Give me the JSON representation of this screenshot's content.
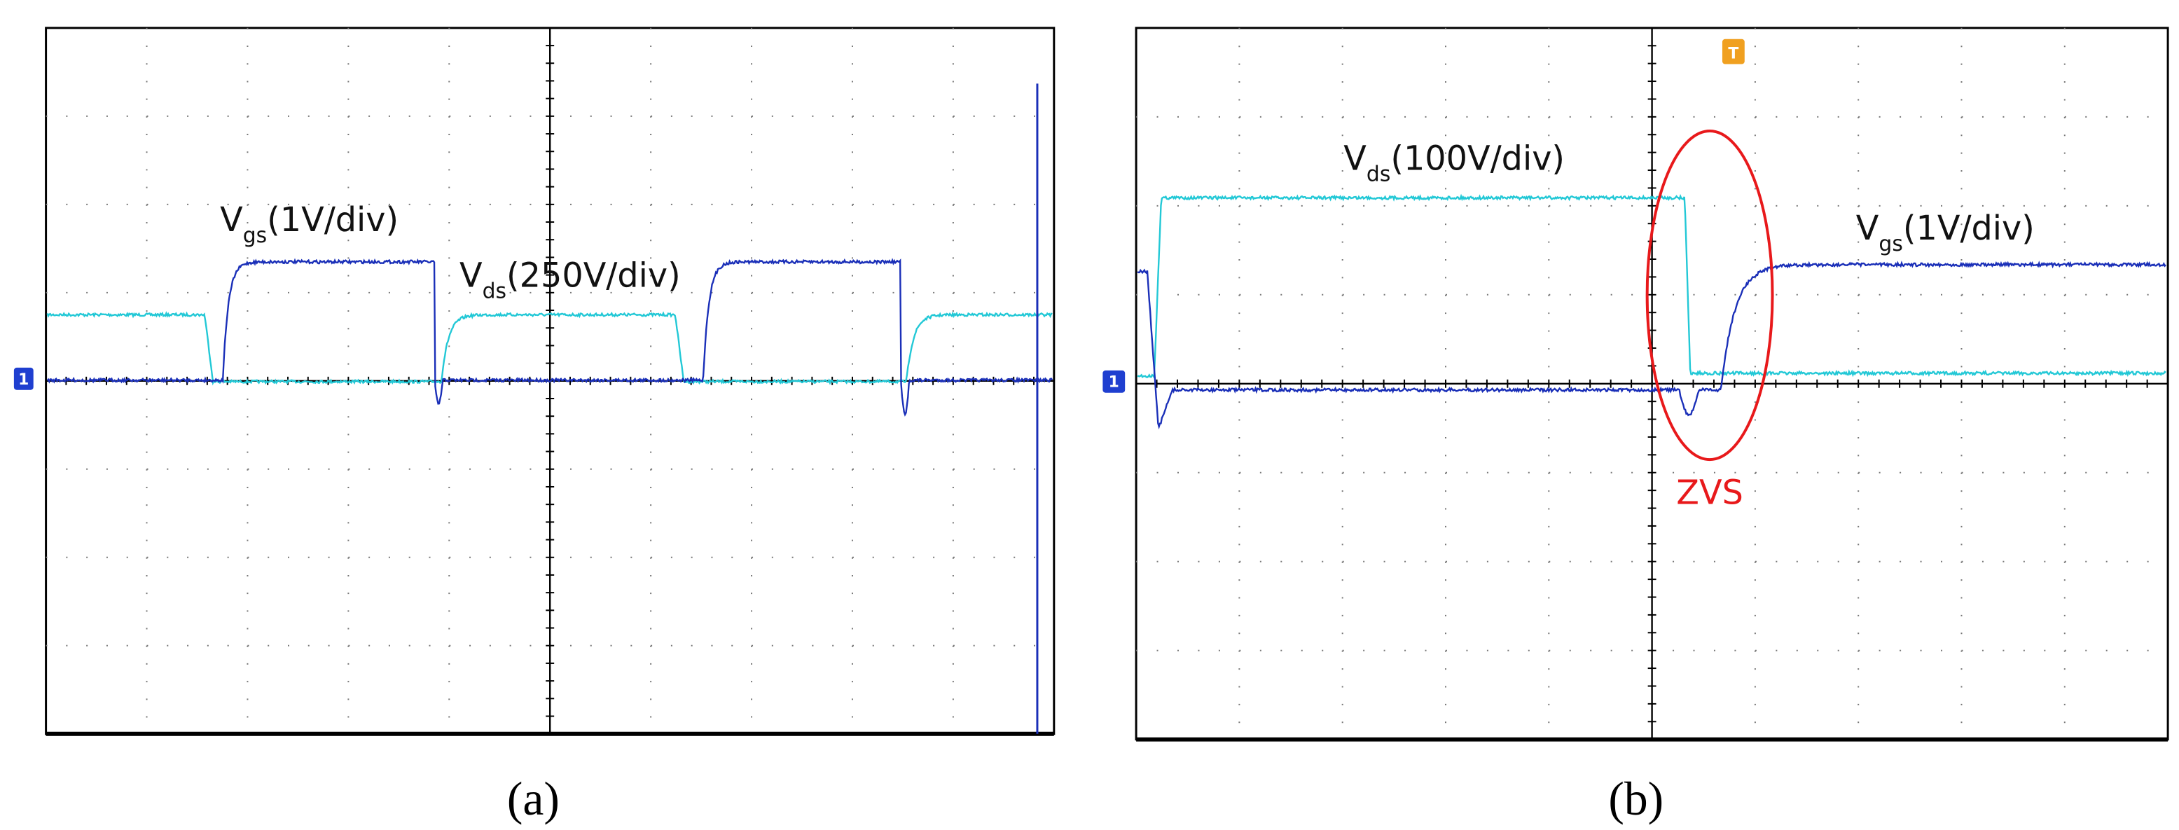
{
  "panels": [
    {
      "label": "(a)",
      "channel_marker": "1",
      "annotations": [
        {
          "symbol": "V",
          "subscript": "gs",
          "scale": "(1V/div)"
        },
        {
          "symbol": "V",
          "subscript": "ds",
          "scale": "(250V/div)"
        }
      ]
    },
    {
      "label": "(b)",
      "channel_marker": "1",
      "trigger_marker": "T",
      "callout": "ZVS",
      "annotations": [
        {
          "symbol": "V",
          "subscript": "ds",
          "scale": "(100V/div)"
        },
        {
          "symbol": "V",
          "subscript": "gs",
          "scale": "(1V/div)"
        }
      ]
    }
  ]
}
